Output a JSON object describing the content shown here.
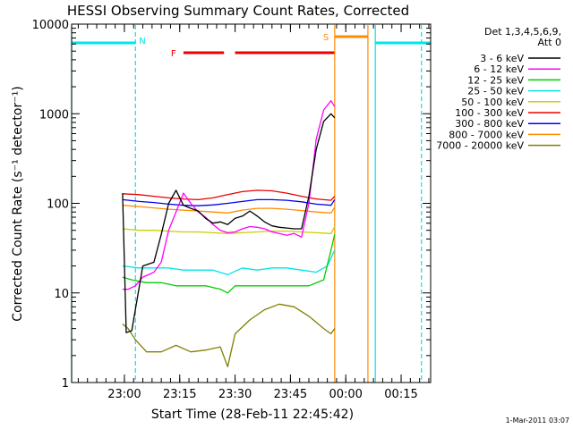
{
  "chart_data": {
    "type": "line",
    "title": "HESSI Observing Summary Count Rates, Corrected",
    "xlabel": "Start Time (28-Feb-11 22:45:42)",
    "ylabel": "Corrected Count Rate (s⁻¹ detector⁻¹)",
    "y_scale": "log",
    "ylim": [
      1,
      10000
    ],
    "xlim": [
      "22:45:42",
      "00:23:00"
    ],
    "x_ticks": [
      "23:00",
      "23:15",
      "23:30",
      "23:45",
      "00:00",
      "00:15"
    ],
    "y_ticks": [
      "1",
      "10",
      "100",
      "1000",
      "10000"
    ],
    "legend_header": [
      "Det 1,3,4,5,6,9,",
      "Att 0"
    ],
    "legend_position": "right",
    "footer": "1-Mar-2011 03:07",
    "flags": {
      "N": {
        "label": "N",
        "color": "#00e5e5",
        "bars": [
          [
            "22:45:42",
            "23:03:00"
          ],
          [
            "00:08:00",
            "00:23:00"
          ]
        ],
        "lines": [
          "22:45:42",
          "23:03:00",
          "00:08:00",
          "00:20:30"
        ]
      },
      "F": {
        "label": "F",
        "color": "#ee0000",
        "bars": [
          [
            "23:16:00",
            "23:27:00"
          ],
          [
            "23:30:00",
            "23:57:00"
          ]
        ]
      },
      "S": {
        "label": "S",
        "color": "#ff8c00",
        "bars": [
          [
            "23:57:00",
            "00:06:00"
          ]
        ],
        "lines": [
          "23:57:00",
          "00:06:00"
        ]
      }
    },
    "series": [
      {
        "name": "3 - 6 keV",
        "color": "#000000",
        "x": [
          "22:59:30",
          "23:00:30",
          "23:02:00",
          "23:05:00",
          "23:08:00",
          "23:10:00",
          "23:12:00",
          "23:14:00",
          "23:16:00",
          "23:18:00",
          "23:20:00",
          "23:22:00",
          "23:24:00",
          "23:26:00",
          "23:28:00",
          "23:30:00",
          "23:32:00",
          "23:34:00",
          "23:36:00",
          "23:38:00",
          "23:40:00",
          "23:42:00",
          "23:44:00",
          "23:46:00",
          "23:48:00",
          "23:50:00",
          "23:52:00",
          "23:54:00",
          "23:56:00",
          "23:57:00"
        ],
        "y": [
          130,
          3.6,
          3.8,
          20,
          22,
          45,
          100,
          140,
          95,
          88,
          82,
          68,
          60,
          62,
          58,
          68,
          72,
          82,
          72,
          62,
          56,
          54,
          53,
          52,
          52,
          120,
          400,
          820,
          1000,
          900
        ]
      },
      {
        "name": "6 - 12 keV",
        "color": "#ff00ff",
        "x": [
          "22:59:30",
          "23:01:00",
          "23:03:00",
          "23:05:00",
          "23:08:00",
          "23:10:00",
          "23:12:00",
          "23:14:00",
          "23:16:00",
          "23:18:00",
          "23:20:00",
          "23:22:00",
          "23:24:00",
          "23:26:00",
          "23:28:00",
          "23:30:00",
          "23:32:00",
          "23:34:00",
          "23:36:00",
          "23:38:00",
          "23:40:00",
          "23:42:00",
          "23:44:00",
          "23:46:00",
          "23:48:00",
          "23:50:00",
          "23:52:00",
          "23:54:00",
          "23:56:00",
          "23:57:00"
        ],
        "y": [
          11,
          11,
          12,
          15,
          17,
          22,
          50,
          80,
          130,
          100,
          80,
          70,
          58,
          50,
          47,
          48,
          52,
          55,
          54,
          52,
          48,
          46,
          44,
          46,
          42,
          100,
          520,
          1100,
          1400,
          1200
        ]
      },
      {
        "name": "12 - 25 keV",
        "color": "#00cc00",
        "x": [
          "22:59:30",
          "23:02:00",
          "23:06:00",
          "23:10:00",
          "23:14:00",
          "23:18:00",
          "23:22:00",
          "23:26:00",
          "23:28:00",
          "23:30:00",
          "23:34:00",
          "23:38:00",
          "23:42:00",
          "23:46:00",
          "23:50:00",
          "23:54:00",
          "23:56:00",
          "23:57:00"
        ],
        "y": [
          15,
          14,
          13,
          13,
          12,
          12,
          12,
          11,
          10,
          12,
          12,
          12,
          12,
          12,
          12,
          14,
          30,
          45
        ]
      },
      {
        "name": "25 - 50 keV",
        "color": "#00e5e5",
        "x": [
          "22:59:30",
          "23:04:00",
          "23:08:00",
          "23:12:00",
          "23:16:00",
          "23:20:00",
          "23:24:00",
          "23:28:00",
          "23:32:00",
          "23:36:00",
          "23:40:00",
          "23:44:00",
          "23:48:00",
          "23:52:00",
          "23:55:00",
          "23:57:00"
        ],
        "y": [
          20,
          19,
          19,
          19,
          18,
          18,
          18,
          16,
          19,
          18,
          19,
          19,
          18,
          17,
          20,
          30
        ]
      },
      {
        "name": "50 - 100 keV",
        "color": "#cccc00",
        "x": [
          "22:59:30",
          "23:04:00",
          "23:08:00",
          "23:12:00",
          "23:16:00",
          "23:20:00",
          "23:24:00",
          "23:28:00",
          "23:32:00",
          "23:36:00",
          "23:40:00",
          "23:44:00",
          "23:48:00",
          "23:52:00",
          "23:56:00",
          "23:57:00"
        ],
        "y": [
          52,
          50,
          50,
          49,
          48,
          48,
          47,
          46,
          47,
          48,
          49,
          49,
          48,
          47,
          46,
          55
        ]
      },
      {
        "name": "100 - 300 keV",
        "color": "#ee0000",
        "x": [
          "22:59:30",
          "23:04:00",
          "23:08:00",
          "23:12:00",
          "23:16:00",
          "23:20:00",
          "23:24:00",
          "23:28:00",
          "23:32:00",
          "23:36:00",
          "23:40:00",
          "23:44:00",
          "23:48:00",
          "23:52:00",
          "23:56:00",
          "23:57:00"
        ],
        "y": [
          128,
          125,
          120,
          115,
          112,
          110,
          115,
          125,
          135,
          140,
          138,
          130,
          120,
          112,
          108,
          120
        ]
      },
      {
        "name": "300 - 800 keV",
        "color": "#0000ee",
        "x": [
          "22:59:30",
          "23:04:00",
          "23:08:00",
          "23:12:00",
          "23:16:00",
          "23:20:00",
          "23:24:00",
          "23:28:00",
          "23:32:00",
          "23:36:00",
          "23:40:00",
          "23:44:00",
          "23:48:00",
          "23:52:00",
          "23:56:00",
          "23:57:00"
        ],
        "y": [
          110,
          105,
          102,
          98,
          95,
          94,
          96,
          100,
          105,
          110,
          110,
          108,
          104,
          98,
          95,
          110
        ]
      },
      {
        "name": "800 - 7000 keV",
        "color": "#ff8c00",
        "x": [
          "22:59:30",
          "23:04:00",
          "23:08:00",
          "23:12:00",
          "23:16:00",
          "23:20:00",
          "23:24:00",
          "23:28:00",
          "23:32:00",
          "23:36:00",
          "23:40:00",
          "23:44:00",
          "23:48:00",
          "23:52:00",
          "23:56:00",
          "23:57:00"
        ],
        "y": [
          95,
          92,
          89,
          86,
          84,
          82,
          80,
          78,
          84,
          88,
          88,
          86,
          83,
          80,
          78,
          90
        ]
      },
      {
        "name": "7000 - 20000 keV",
        "color": "#808000",
        "x": [
          "22:59:30",
          "23:01:00",
          "23:03:00",
          "23:06:00",
          "23:10:00",
          "23:14:00",
          "23:18:00",
          "23:22:00",
          "23:26:00",
          "23:28:00",
          "23:30:00",
          "23:34:00",
          "23:38:00",
          "23:42:00",
          "23:46:00",
          "23:50:00",
          "23:54:00",
          "23:56:00",
          "23:57:00"
        ],
        "y": [
          4.5,
          4,
          3,
          2.2,
          2.2,
          2.6,
          2.2,
          2.3,
          2.5,
          1.5,
          3.5,
          5,
          6.5,
          7.5,
          7,
          5.5,
          4,
          3.5,
          4
        ]
      }
    ]
  }
}
